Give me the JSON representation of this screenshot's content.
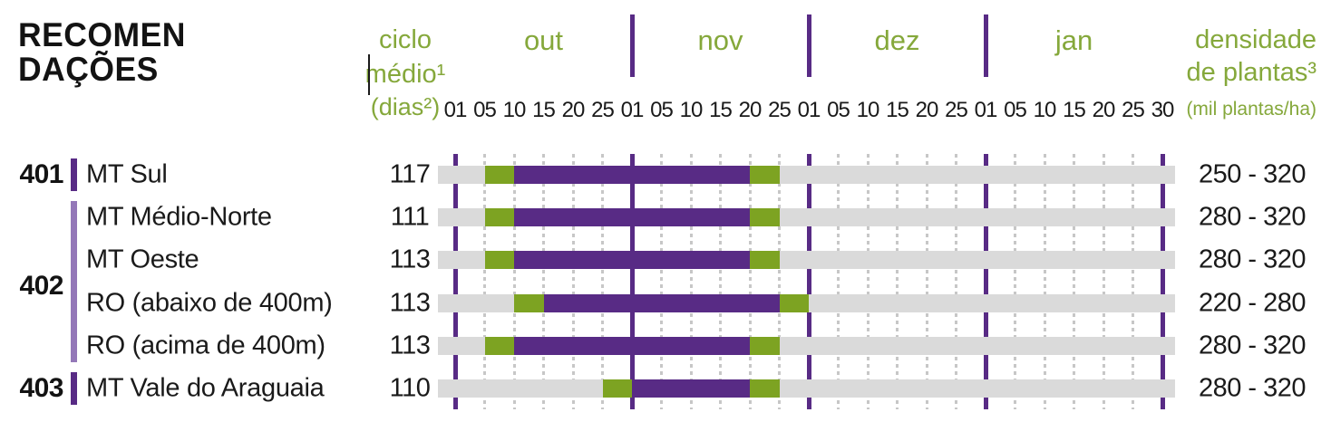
{
  "title": {
    "line1": "RECOMEN",
    "line2": "DAÇÕES"
  },
  "header": {
    "ciclo": {
      "line1": "ciclo",
      "line2": "médio¹",
      "line3": "(dias²)"
    },
    "densidade": {
      "line1": "densidade",
      "line2": "de plantas³",
      "line3": "(mil plantas/ha)"
    }
  },
  "colors": {
    "green_text": "#85a83b",
    "green_bar": "#7da322",
    "purple_dark": "#582b85",
    "purple_light": "#9478b8",
    "gray_bar": "#dadada",
    "gridline_gray": "#c7c7c7",
    "text_black": "#1a1a1a"
  },
  "chart_data": {
    "type": "gantt",
    "title": "RECOMENDAÇÕES",
    "x_axis": {
      "months": [
        {
          "name": "out",
          "days": [
            "01",
            "05",
            "10",
            "15",
            "20",
            "25"
          ]
        },
        {
          "name": "nov",
          "days": [
            "01",
            "05",
            "10",
            "15",
            "20",
            "25"
          ]
        },
        {
          "name": "dez",
          "days": [
            "01",
            "05",
            "10",
            "15",
            "20",
            "25"
          ]
        },
        {
          "name": "jan",
          "days": [
            "01",
            "05",
            "10",
            "15",
            "20",
            "25",
            "30"
          ]
        }
      ]
    },
    "groups": [
      {
        "code": "401",
        "row_indexes": [
          0
        ],
        "bar_color": "purple_dark"
      },
      {
        "code": "402",
        "row_indexes": [
          1,
          2,
          3,
          4
        ],
        "bar_color": "purple_light"
      },
      {
        "code": "403",
        "row_indexes": [
          5
        ],
        "bar_color": "purple_dark"
      }
    ],
    "rows": [
      {
        "group": "401",
        "region": "MT Sul",
        "ciclo_medio_dias": "117",
        "densidade_mil_plantas_ha": "250 - 320",
        "janela": {
          "inicio": "05/out",
          "fim": "25/nov"
        },
        "preferencial": {
          "inicio": "10/out",
          "fim": "20/nov"
        },
        "segments": [
          {
            "color": "green_bar",
            "from_tick": 1,
            "to_tick": 2
          },
          {
            "color": "purple_dark",
            "from_tick": 2,
            "to_tick": 10
          },
          {
            "color": "green_bar",
            "from_tick": 10,
            "to_tick": 11
          }
        ]
      },
      {
        "group": "402",
        "region": "MT Médio-Norte",
        "ciclo_medio_dias": "111",
        "densidade_mil_plantas_ha": "280 - 320",
        "janela": {
          "inicio": "05/out",
          "fim": "25/nov"
        },
        "preferencial": {
          "inicio": "10/out",
          "fim": "20/nov"
        },
        "segments": [
          {
            "color": "green_bar",
            "from_tick": 1,
            "to_tick": 2
          },
          {
            "color": "purple_dark",
            "from_tick": 2,
            "to_tick": 10
          },
          {
            "color": "green_bar",
            "from_tick": 10,
            "to_tick": 11
          }
        ]
      },
      {
        "group": "402",
        "region": "MT Oeste",
        "ciclo_medio_dias": "113",
        "densidade_mil_plantas_ha": "280 - 320",
        "janela": {
          "inicio": "05/out",
          "fim": "25/nov"
        },
        "preferencial": {
          "inicio": "10/out",
          "fim": "20/nov"
        },
        "segments": [
          {
            "color": "green_bar",
            "from_tick": 1,
            "to_tick": 2
          },
          {
            "color": "purple_dark",
            "from_tick": 2,
            "to_tick": 10
          },
          {
            "color": "green_bar",
            "from_tick": 10,
            "to_tick": 11
          }
        ]
      },
      {
        "group": "402",
        "region": "RO (abaixo de 400m)",
        "ciclo_medio_dias": "113",
        "densidade_mil_plantas_ha": "220 - 280",
        "janela": {
          "inicio": "10/out",
          "fim": "01/dez"
        },
        "preferencial": {
          "inicio": "15/out",
          "fim": "25/nov"
        },
        "segments": [
          {
            "color": "green_bar",
            "from_tick": 2,
            "to_tick": 3
          },
          {
            "color": "purple_dark",
            "from_tick": 3,
            "to_tick": 11
          },
          {
            "color": "green_bar",
            "from_tick": 11,
            "to_tick": 12
          }
        ]
      },
      {
        "group": "402",
        "region": "RO (acima de 400m)",
        "ciclo_medio_dias": "113",
        "densidade_mil_plantas_ha": "280 - 320",
        "janela": {
          "inicio": "05/out",
          "fim": "25/nov"
        },
        "preferencial": {
          "inicio": "10/out",
          "fim": "20/nov"
        },
        "segments": [
          {
            "color": "green_bar",
            "from_tick": 1,
            "to_tick": 2
          },
          {
            "color": "purple_dark",
            "from_tick": 2,
            "to_tick": 10
          },
          {
            "color": "green_bar",
            "from_tick": 10,
            "to_tick": 11
          }
        ]
      },
      {
        "group": "403",
        "region": "MT Vale do Araguaia",
        "ciclo_medio_dias": "110",
        "densidade_mil_plantas_ha": "280 - 320",
        "janela": {
          "inicio": "25/out",
          "fim": "25/nov"
        },
        "preferencial": {
          "inicio": "01/nov",
          "fim": "20/nov"
        },
        "segments": [
          {
            "color": "green_bar",
            "from_tick": 5,
            "to_tick": 6
          },
          {
            "color": "purple_dark",
            "from_tick": 6,
            "to_tick": 10
          },
          {
            "color": "green_bar",
            "from_tick": 10,
            "to_tick": 11
          }
        ]
      }
    ]
  }
}
